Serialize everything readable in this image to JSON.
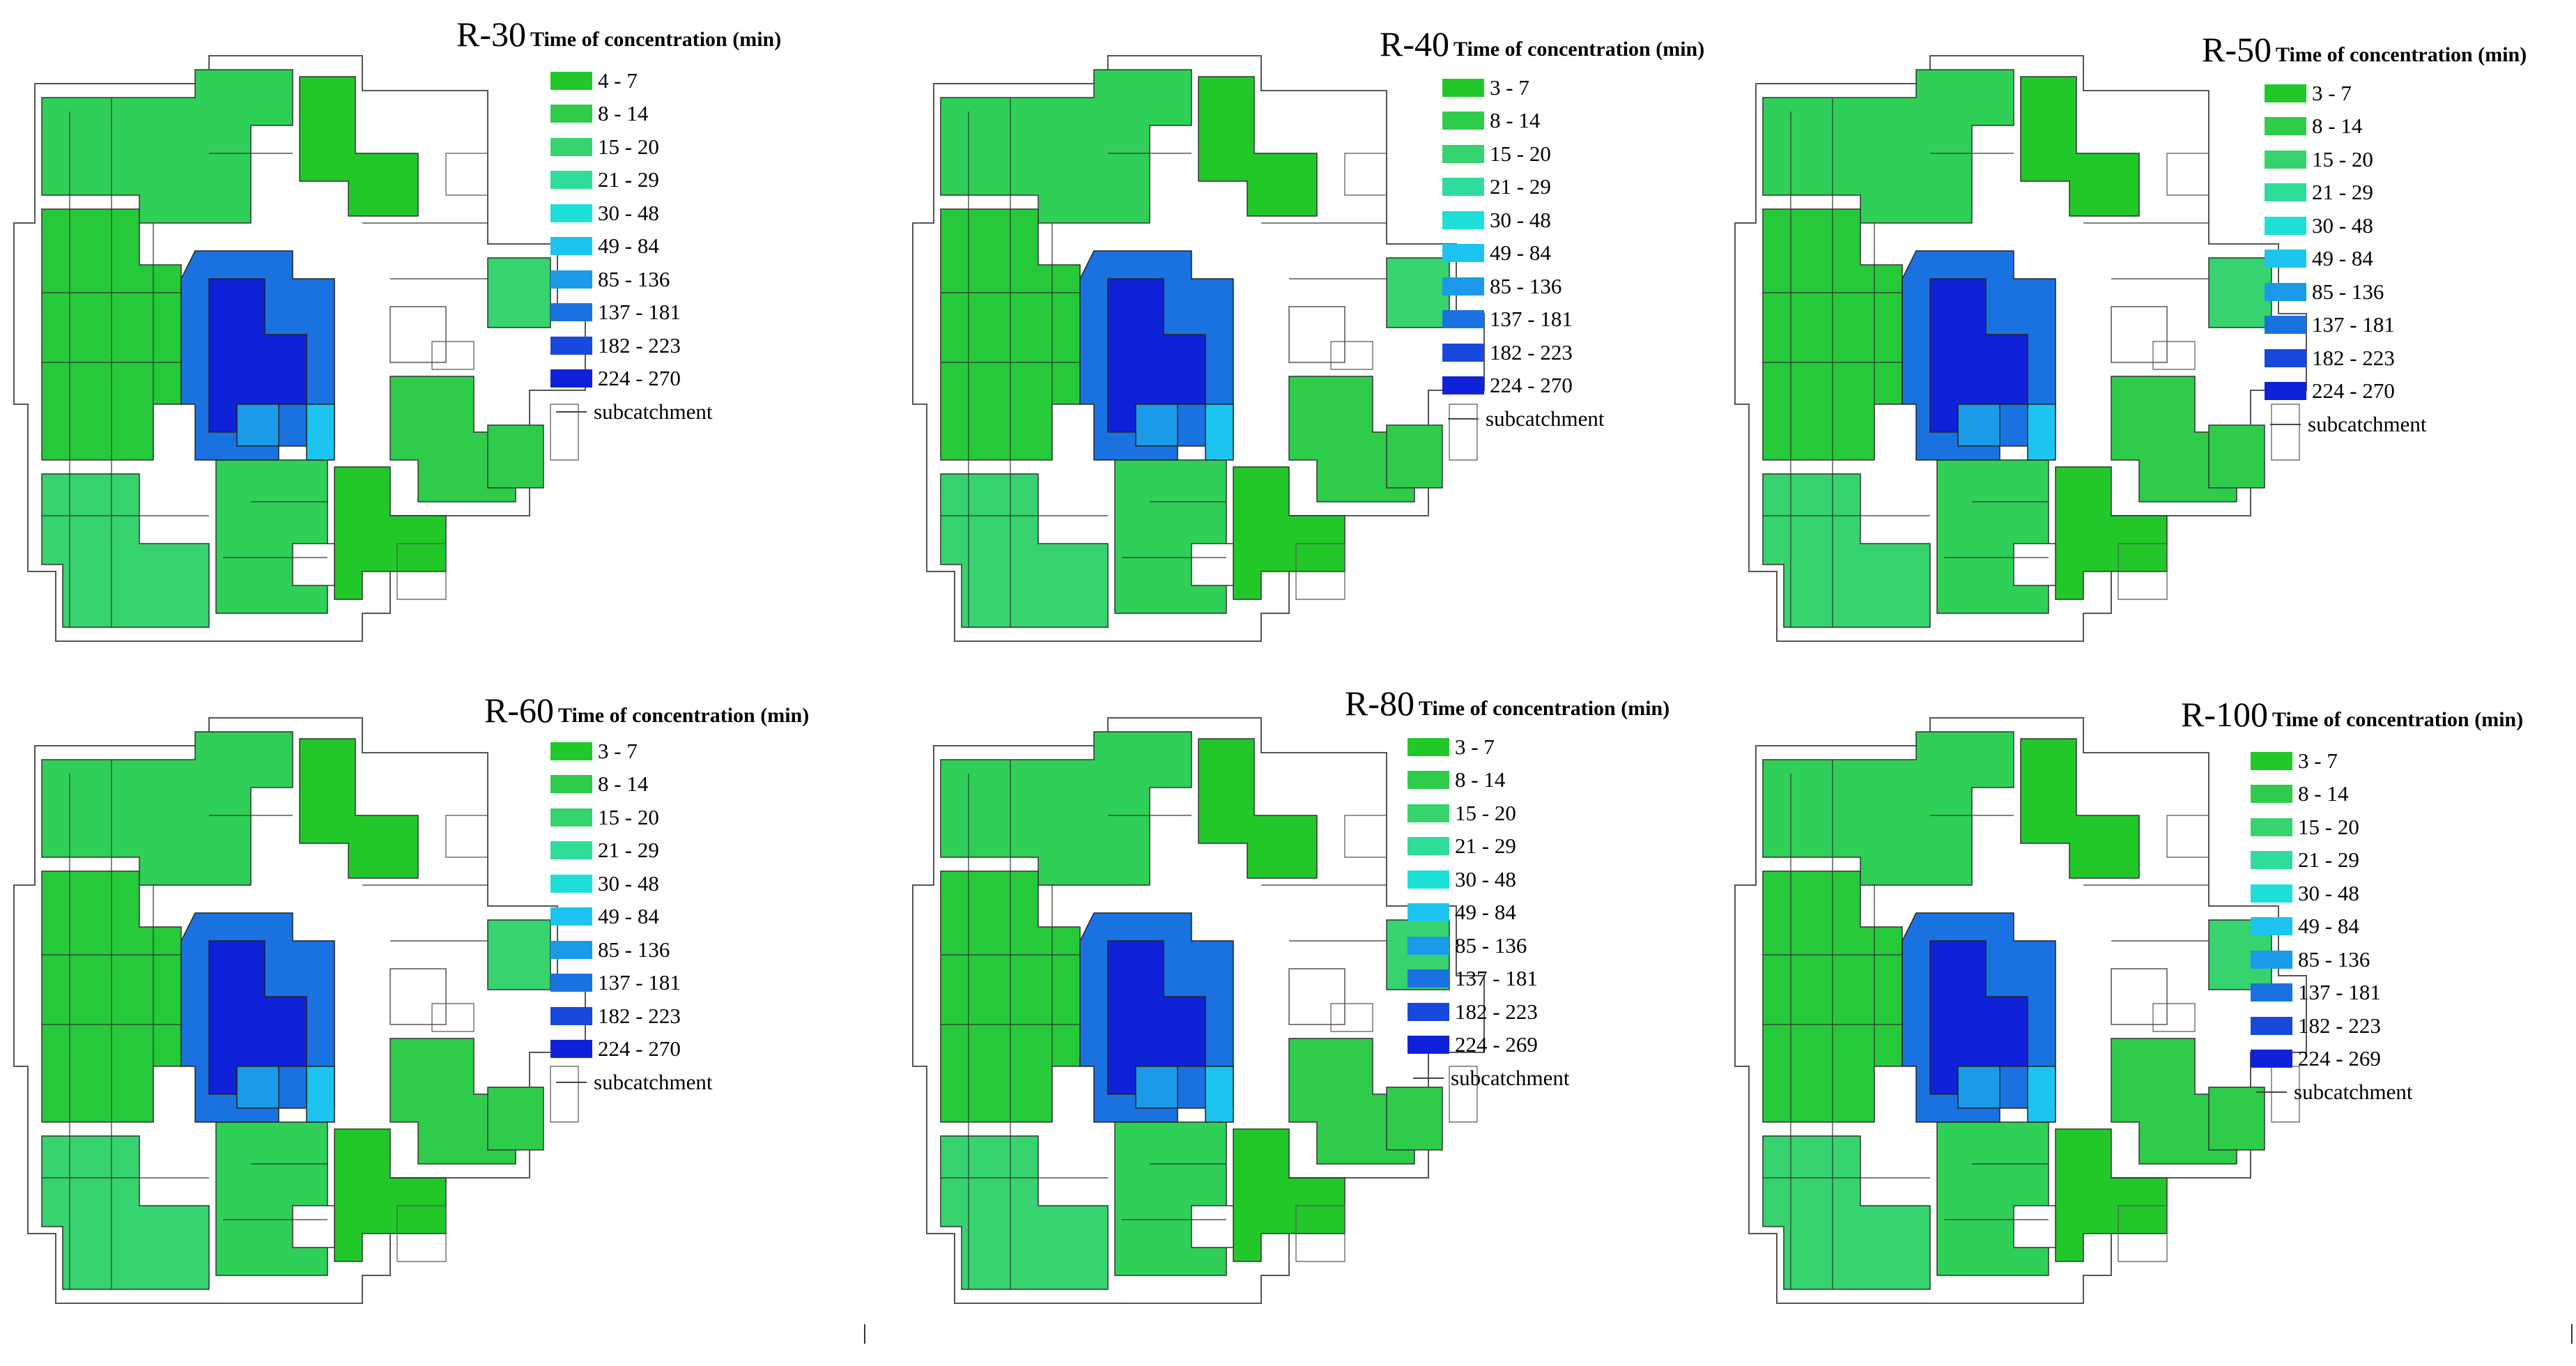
{
  "legend_title": "Time of concentration (min)",
  "subcatchment_label": "subcatchment",
  "colors": [
    "#22c82a",
    "#2ecc4a",
    "#36d36e",
    "#2fdc9a",
    "#1ee0d8",
    "#1cc4ef",
    "#1a9ae8",
    "#1a72e0",
    "#1848dc",
    "#0f22d8"
  ],
  "panels": [
    {
      "title": "R-30",
      "ranges": [
        "4 - 7",
        "8 - 14",
        "15 - 20",
        "21 - 29",
        "30 - 48",
        "49 - 84",
        "85 - 136",
        "137 - 181",
        "182 - 223",
        "224 - 270"
      ]
    },
    {
      "title": "R-40",
      "ranges": [
        "3 - 7",
        "8 - 14",
        "15 - 20",
        "21 - 29",
        "30 - 48",
        "49 - 84",
        "85 - 136",
        "137 - 181",
        "182 - 223",
        "224 - 270"
      ]
    },
    {
      "title": "R-50",
      "ranges": [
        "3 - 7",
        "8 - 14",
        "15 - 20",
        "21 - 29",
        "30 - 48",
        "49 - 84",
        "85 - 136",
        "137 - 181",
        "182 - 223",
        "224 - 270"
      ]
    },
    {
      "title": "R-60",
      "ranges": [
        "3 - 7",
        "8 - 14",
        "15 - 20",
        "21 - 29",
        "30 - 48",
        "49 - 84",
        "85 - 136",
        "137 - 181",
        "182 - 223",
        "224 - 270"
      ]
    },
    {
      "title": "R-80",
      "ranges": [
        "3 - 7",
        "8 - 14",
        "15 - 20",
        "21 - 29",
        "30 - 48",
        "49 - 84",
        "85 - 136",
        "137 - 181",
        "182 - 223",
        "224 - 269"
      ]
    },
    {
      "title": "R-100",
      "ranges": [
        "3 - 7",
        "8 - 14",
        "15 - 20",
        "21 - 29",
        "30 - 48",
        "49 - 84",
        "85 - 136",
        "137 - 181",
        "182 - 223",
        "224 - 269"
      ]
    }
  ]
}
